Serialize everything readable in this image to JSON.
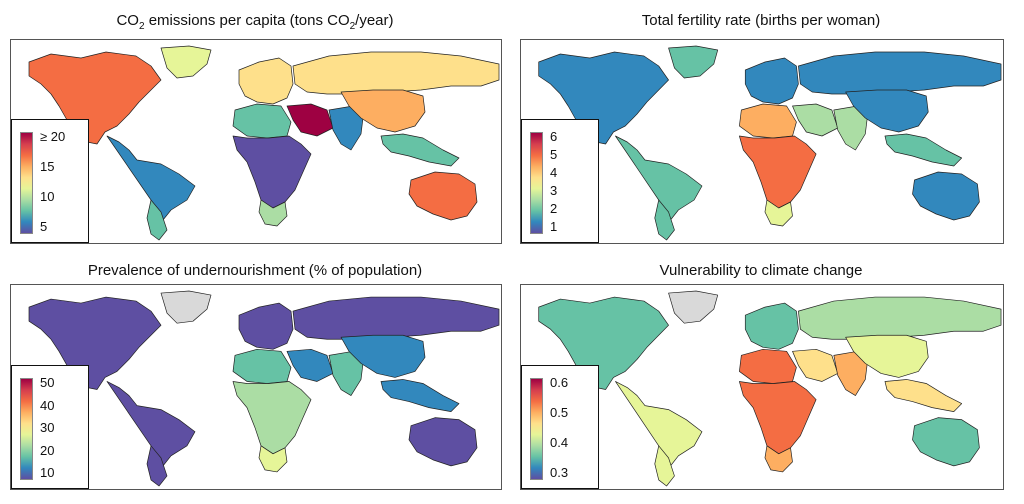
{
  "panels": [
    {
      "title_prefix": "CO",
      "title_sub1": "2",
      "title_mid": " emissions per capita (tons CO",
      "title_sub2": "2",
      "title_suffix": "/year)",
      "legend": {
        "ticks": [
          "≥ 20",
          "15",
          "10",
          "5"
        ]
      }
    },
    {
      "title": "Total fertility rate (births per woman)",
      "legend": {
        "ticks": [
          "6",
          "5",
          "4",
          "3",
          "2",
          "1"
        ]
      }
    },
    {
      "title": "Prevalence of undernourishment (% of population)",
      "legend": {
        "ticks": [
          "50",
          "40",
          "30",
          "20",
          "10"
        ]
      }
    },
    {
      "title": "Vulnerability to climate change",
      "legend": {
        "ticks": [
          "0.6",
          "0.5",
          "0.4",
          "0.3"
        ]
      }
    }
  ],
  "colors": {
    "scale": [
      "#5e4fa2",
      "#3288bd",
      "#66c2a5",
      "#abdda4",
      "#e6f598",
      "#fee08b",
      "#fdae61",
      "#f46d43",
      "#d53e4f",
      "#9e0142"
    ],
    "no_data": "#d9d9d9"
  },
  "regions": {
    "co2": {
      "na": 7,
      "greenland": 4,
      "la": 1,
      "la_south": 2,
      "eur": 5,
      "rus": 5,
      "mideast": 9,
      "saharan": 2,
      "africa": 0,
      "s_africa": 3,
      "south_asia": 1,
      "china": 6,
      "sea": 2,
      "aus": 7
    },
    "tfr": {
      "na": 1,
      "greenland": 2,
      "la": 2,
      "la_south": 2,
      "eur": 1,
      "rus": 1,
      "mideast": 3,
      "saharan": 6,
      "africa": 7,
      "s_africa": 4,
      "south_asia": 3,
      "china": 1,
      "sea": 2,
      "aus": 1
    },
    "und": {
      "na": 0,
      "greenland": -1,
      "la": 0,
      "la_south": 0,
      "eur": 0,
      "rus": 0,
      "mideast": 1,
      "saharan": 2,
      "africa": 3,
      "s_africa": 4,
      "south_asia": 2,
      "china": 1,
      "sea": 1,
      "aus": 0
    },
    "vul": {
      "na": 2,
      "greenland": -1,
      "la": 4,
      "la_south": 4,
      "eur": 2,
      "rus": 3,
      "mideast": 5,
      "saharan": 7,
      "africa": 7,
      "s_africa": 6,
      "south_asia": 6,
      "china": 4,
      "sea": 5,
      "aus": 2
    }
  }
}
